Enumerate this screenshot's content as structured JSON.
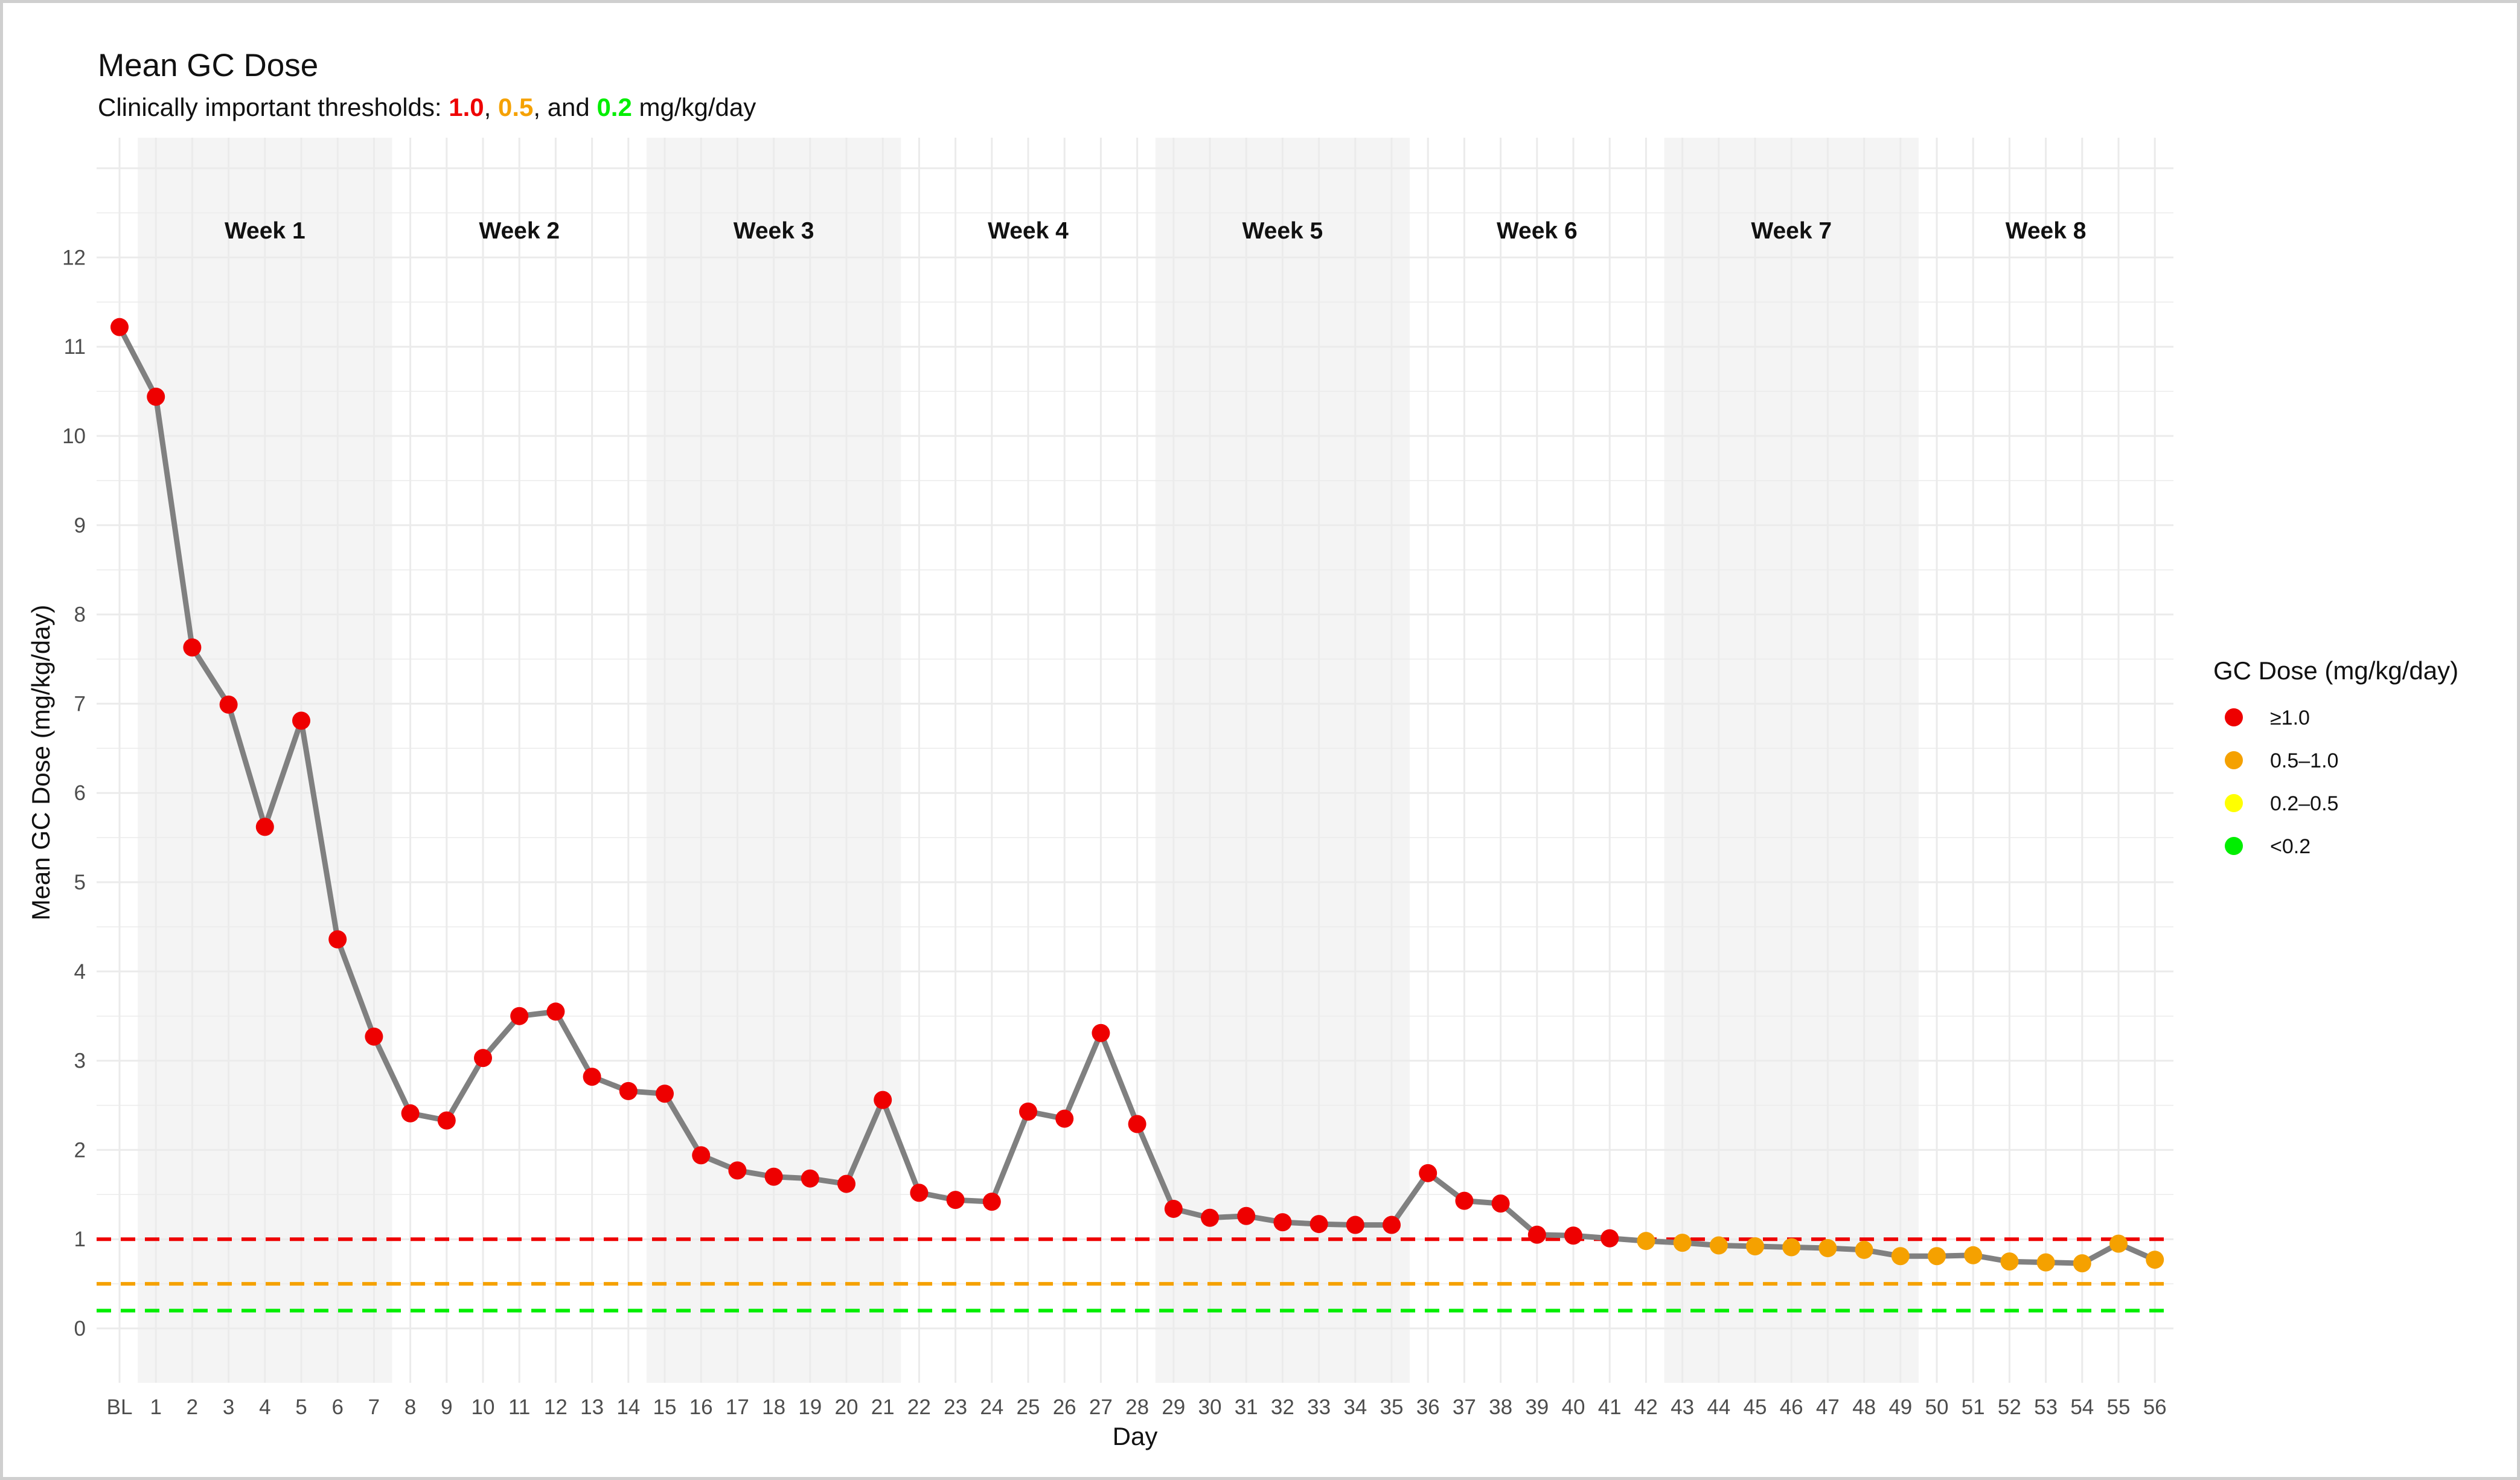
{
  "title": "Mean GC Dose",
  "subtitle": {
    "prefix": "Clinically important thresholds: ",
    "t1": "1.0",
    "sep1": ", ",
    "t2": "0.5",
    "sep2": ", and ",
    "t3": "0.2",
    "suffix": " mg/kg/day"
  },
  "colors": {
    "red": "#ee0000",
    "orange": "#f5a100",
    "yellow": "#ffff00",
    "green": "#00ee00",
    "line": "#808080",
    "band": "#f4f4f4",
    "grid": "#ebebeb"
  },
  "chart_data": {
    "type": "line",
    "xlabel": "Day",
    "ylabel": "Mean GC Dose (mg/kg/day)",
    "ylim": [
      -0.6,
      13.2
    ],
    "yticks": [
      0,
      1,
      2,
      3,
      4,
      5,
      6,
      7,
      8,
      9,
      10,
      11,
      12
    ],
    "x": [
      "BL",
      "1",
      "2",
      "3",
      "4",
      "5",
      "6",
      "7",
      "8",
      "9",
      "10",
      "11",
      "12",
      "13",
      "14",
      "15",
      "16",
      "17",
      "18",
      "19",
      "20",
      "21",
      "22",
      "23",
      "24",
      "25",
      "26",
      "27",
      "28",
      "29",
      "30",
      "31",
      "32",
      "33",
      "34",
      "35",
      "36",
      "37",
      "38",
      "39",
      "40",
      "41",
      "42",
      "43",
      "44",
      "45",
      "46",
      "47",
      "48",
      "49",
      "50",
      "51",
      "52",
      "53",
      "54",
      "55",
      "56"
    ],
    "values": [
      11.22,
      10.44,
      7.63,
      6.99,
      5.62,
      6.81,
      4.36,
      3.27,
      2.41,
      2.33,
      3.03,
      3.5,
      3.55,
      2.82,
      2.66,
      2.63,
      1.94,
      1.77,
      1.7,
      1.68,
      1.62,
      2.56,
      1.52,
      1.44,
      1.42,
      2.43,
      2.35,
      3.31,
      2.29,
      1.34,
      1.24,
      1.26,
      1.19,
      1.17,
      1.16,
      1.16,
      1.74,
      1.43,
      1.4,
      1.05,
      1.04,
      1.01,
      0.98,
      0.96,
      0.93,
      0.92,
      0.91,
      0.9,
      0.88,
      0.81,
      0.81,
      0.82,
      0.75,
      0.74,
      0.73,
      0.95,
      0.77
    ],
    "thresholds": [
      {
        "value": 1.0,
        "color": "#ee0000"
      },
      {
        "value": 0.5,
        "color": "#f5a100"
      },
      {
        "value": 0.2,
        "color": "#00ee00"
      }
    ],
    "weeks": [
      {
        "label": "Week 1",
        "start": 1,
        "end": 7,
        "shaded": true
      },
      {
        "label": "Week 2",
        "start": 8,
        "end": 14,
        "shaded": false
      },
      {
        "label": "Week 3",
        "start": 15,
        "end": 21,
        "shaded": true
      },
      {
        "label": "Week 4",
        "start": 22,
        "end": 28,
        "shaded": false
      },
      {
        "label": "Week 5",
        "start": 29,
        "end": 35,
        "shaded": true
      },
      {
        "label": "Week 6",
        "start": 36,
        "end": 42,
        "shaded": false
      },
      {
        "label": "Week 7",
        "start": 43,
        "end": 49,
        "shaded": true
      },
      {
        "label": "Week 8",
        "start": 50,
        "end": 56,
        "shaded": false
      }
    ],
    "legend": {
      "title": "GC Dose (mg/kg/day)",
      "position": "right",
      "items": [
        {
          "label": "≥1.0",
          "color": "#ee0000"
        },
        {
          "label": "0.5–1.0",
          "color": "#f5a100"
        },
        {
          "label": "0.2–0.5",
          "color": "#ffff00"
        },
        {
          "label": "<0.2",
          "color": "#00ee00"
        }
      ]
    },
    "grid": true
  }
}
